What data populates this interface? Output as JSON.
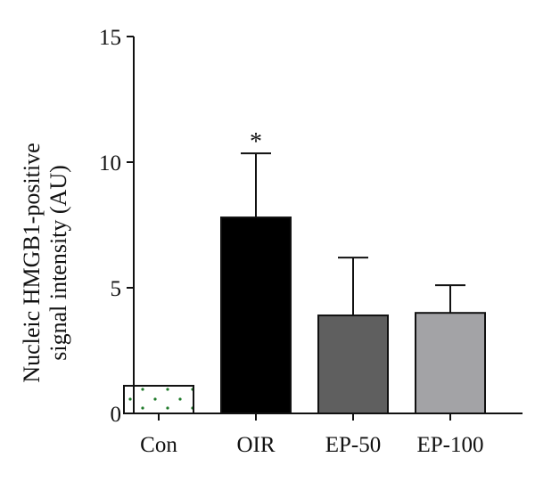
{
  "chart_data": {
    "type": "bar",
    "title": "",
    "xlabel": "",
    "ylabel": [
      "Nucleic HMGB1-positive",
      "signal intensity (AU)"
    ],
    "ylim": [
      0,
      15
    ],
    "yticks": [
      0,
      5,
      10,
      15
    ],
    "categories": [
      "Con",
      "OIR",
      "EP-50",
      "EP-100"
    ],
    "values": [
      1.1,
      7.8,
      3.9,
      4.0
    ],
    "error_upper": [
      0,
      2.55,
      2.3,
      1.1
    ],
    "significance": [
      "",
      "*",
      "",
      ""
    ],
    "bar_colors": [
      "#ffffff",
      "#000000",
      "#5f5f5f",
      "#a3a3a6"
    ],
    "bar_patterns": [
      "dotted-green",
      "solid",
      "solid",
      "solid"
    ],
    "pattern_dot_color": "#1f7a2a",
    "grid": false,
    "legend": "none"
  }
}
